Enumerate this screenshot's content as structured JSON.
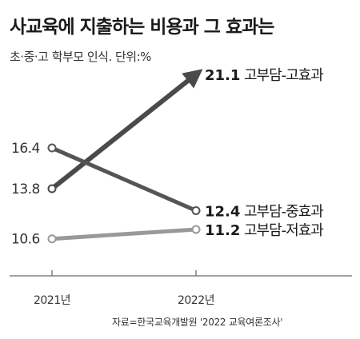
{
  "header": {
    "title": "사교육에 지출하는 비용과 그 효과는",
    "subtitle": "초·중·고 학부모 인식. 단위:%"
  },
  "footer": {
    "source": "자료=한국교육개발원 '2022 교육여론조사'"
  },
  "chart_data": {
    "type": "line",
    "x": [
      "2021년",
      "2022년"
    ],
    "y_tick_labels": [
      "16.4",
      "13.8",
      "10.6"
    ],
    "series": [
      {
        "name": "고부담-고효과",
        "values": [
          13.8,
          21.1
        ],
        "value_label_2022": "21.1",
        "color": "#4a4a4a",
        "arrow": true
      },
      {
        "name": "고부담-중효과",
        "values": [
          16.4,
          12.4
        ],
        "value_label_2022": "12.4",
        "color": "#555555",
        "arrow": false
      },
      {
        "name": "고부담-저효과",
        "values": [
          10.6,
          11.2
        ],
        "value_label_2022": "11.2",
        "color": "#999999",
        "arrow": false
      }
    ],
    "grid": false,
    "legend": "direct labels at right end of lines"
  }
}
